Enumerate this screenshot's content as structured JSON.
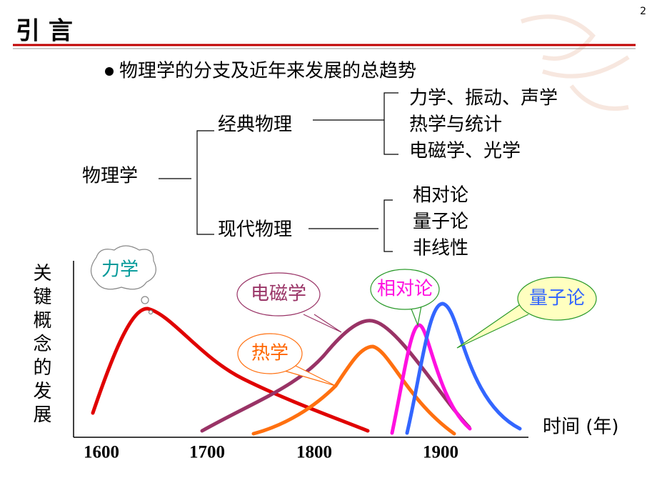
{
  "page_number": "2",
  "title": "引 言",
  "bullet": "物理学的分支及近年来发展的总趋势",
  "tree": {
    "root": "物理学",
    "branches": [
      {
        "label": "经典物理",
        "items": [
          "力学、振动、声学",
          "热学与统计",
          "电磁学、光学"
        ]
      },
      {
        "label": "现代物理",
        "items": [
          "相对论",
          "量子论",
          "非线性"
        ]
      }
    ]
  },
  "chart": {
    "y_label": "关键概念的发展",
    "x_label": "时间 (年)",
    "x_ticks": [
      "1600",
      "1700",
      "1800",
      "1900"
    ],
    "callouts": [
      "力学",
      "电磁学",
      "热学",
      "相对论",
      "量子论"
    ]
  }
}
